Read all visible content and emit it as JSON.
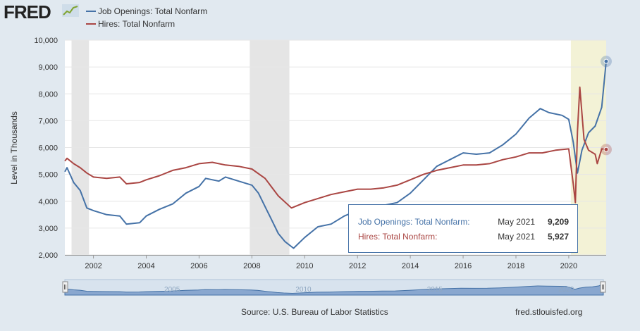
{
  "header": {
    "logo_text": "FRED"
  },
  "chart_data": {
    "type": "line",
    "ylabel": "Level in Thousands",
    "ylim": [
      2000,
      10000
    ],
    "y_ticks": [
      "2,000",
      "3,000",
      "4,000",
      "5,000",
      "6,000",
      "7,000",
      "8,000",
      "9,000",
      "10,000"
    ],
    "y_tick_values": [
      2000,
      3000,
      4000,
      5000,
      6000,
      7000,
      8000,
      9000,
      10000
    ],
    "xlim": [
      2000.917,
      2021.417
    ],
    "x_ticks": [
      "2002",
      "2004",
      "2006",
      "2008",
      "2010",
      "2012",
      "2014",
      "2016",
      "2018",
      "2020"
    ],
    "x_tick_values": [
      2002,
      2004,
      2006,
      2008,
      2010,
      2012,
      2014,
      2016,
      2018,
      2020
    ],
    "recessions": [
      [
        2001.17,
        2001.83
      ],
      [
        2007.92,
        2009.42
      ],
      [
        2020.08,
        2021.417
      ]
    ],
    "series": [
      {
        "name": "Job Openings: Total Nonfarm",
        "color": "#4572a7",
        "points": [
          [
            2000.917,
            5100
          ],
          [
            2001.0,
            5250
          ],
          [
            2001.25,
            4700
          ],
          [
            2001.5,
            4400
          ],
          [
            2001.75,
            3750
          ],
          [
            2002.0,
            3650
          ],
          [
            2002.5,
            3500
          ],
          [
            2003.0,
            3450
          ],
          [
            2003.25,
            3150
          ],
          [
            2003.75,
            3200
          ],
          [
            2004.0,
            3450
          ],
          [
            2004.5,
            3700
          ],
          [
            2005.0,
            3900
          ],
          [
            2005.5,
            4300
          ],
          [
            2006.0,
            4550
          ],
          [
            2006.25,
            4850
          ],
          [
            2006.75,
            4750
          ],
          [
            2007.0,
            4900
          ],
          [
            2007.5,
            4750
          ],
          [
            2008.0,
            4600
          ],
          [
            2008.25,
            4300
          ],
          [
            2008.5,
            3800
          ],
          [
            2008.75,
            3300
          ],
          [
            2009.0,
            2800
          ],
          [
            2009.25,
            2500
          ],
          [
            2009.58,
            2250
          ],
          [
            2010.0,
            2650
          ],
          [
            2010.5,
            3050
          ],
          [
            2011.0,
            3150
          ],
          [
            2011.5,
            3450
          ],
          [
            2012.0,
            3650
          ],
          [
            2012.5,
            3700
          ],
          [
            2013.0,
            3850
          ],
          [
            2013.5,
            3950
          ],
          [
            2014.0,
            4300
          ],
          [
            2014.5,
            4800
          ],
          [
            2015.0,
            5300
          ],
          [
            2015.5,
            5550
          ],
          [
            2016.0,
            5800
          ],
          [
            2016.5,
            5750
          ],
          [
            2017.0,
            5800
          ],
          [
            2017.5,
            6100
          ],
          [
            2018.0,
            6500
          ],
          [
            2018.5,
            7100
          ],
          [
            2018.92,
            7450
          ],
          [
            2019.25,
            7300
          ],
          [
            2019.75,
            7200
          ],
          [
            2020.0,
            7050
          ],
          [
            2020.17,
            6200
          ],
          [
            2020.33,
            5050
          ],
          [
            2020.5,
            5900
          ],
          [
            2020.75,
            6550
          ],
          [
            2021.0,
            6800
          ],
          [
            2021.25,
            7500
          ],
          [
            2021.417,
            9209
          ]
        ]
      },
      {
        "name": "Hires: Total Nonfarm",
        "color": "#aa4643",
        "points": [
          [
            2000.917,
            5500
          ],
          [
            2001.0,
            5600
          ],
          [
            2001.25,
            5400
          ],
          [
            2001.5,
            5250
          ],
          [
            2001.75,
            5050
          ],
          [
            2002.0,
            4900
          ],
          [
            2002.5,
            4850
          ],
          [
            2003.0,
            4900
          ],
          [
            2003.25,
            4650
          ],
          [
            2003.75,
            4700
          ],
          [
            2004.0,
            4800
          ],
          [
            2004.5,
            4950
          ],
          [
            2005.0,
            5150
          ],
          [
            2005.5,
            5250
          ],
          [
            2006.0,
            5400
          ],
          [
            2006.5,
            5450
          ],
          [
            2007.0,
            5350
          ],
          [
            2007.5,
            5300
          ],
          [
            2008.0,
            5200
          ],
          [
            2008.5,
            4850
          ],
          [
            2009.0,
            4200
          ],
          [
            2009.5,
            3750
          ],
          [
            2010.0,
            3950
          ],
          [
            2010.5,
            4100
          ],
          [
            2011.0,
            4250
          ],
          [
            2011.5,
            4350
          ],
          [
            2012.0,
            4450
          ],
          [
            2012.5,
            4450
          ],
          [
            2013.0,
            4500
          ],
          [
            2013.5,
            4600
          ],
          [
            2014.0,
            4800
          ],
          [
            2014.5,
            5000
          ],
          [
            2015.0,
            5150
          ],
          [
            2015.5,
            5250
          ],
          [
            2016.0,
            5350
          ],
          [
            2016.5,
            5350
          ],
          [
            2017.0,
            5400
          ],
          [
            2017.5,
            5550
          ],
          [
            2018.0,
            5650
          ],
          [
            2018.5,
            5800
          ],
          [
            2019.0,
            5800
          ],
          [
            2019.5,
            5900
          ],
          [
            2020.0,
            5950
          ],
          [
            2020.17,
            4650
          ],
          [
            2020.25,
            3950
          ],
          [
            2020.33,
            6600
          ],
          [
            2020.42,
            8250
          ],
          [
            2020.58,
            6300
          ],
          [
            2020.75,
            5900
          ],
          [
            2021.0,
            5750
          ],
          [
            2021.08,
            5400
          ],
          [
            2021.25,
            5950
          ],
          [
            2021.417,
            5927
          ]
        ]
      }
    ]
  },
  "tooltip": {
    "rows": [
      {
        "name": "Job Openings: Total Nonfarm:",
        "date": "May 2021",
        "value": "9,209",
        "color": "#4572a7"
      },
      {
        "name": "Hires: Total Nonfarm:",
        "date": "May 2021",
        "value": "5,927",
        "color": "#aa4643"
      }
    ]
  },
  "navigator": {
    "labels": [
      "2005",
      "2010",
      "2015",
      "2020"
    ],
    "label_values": [
      2005,
      2010,
      2015,
      2020
    ]
  },
  "footer": {
    "source": "Source: U.S. Bureau of Labor Statistics",
    "site": "fred.stlouisfed.org"
  }
}
